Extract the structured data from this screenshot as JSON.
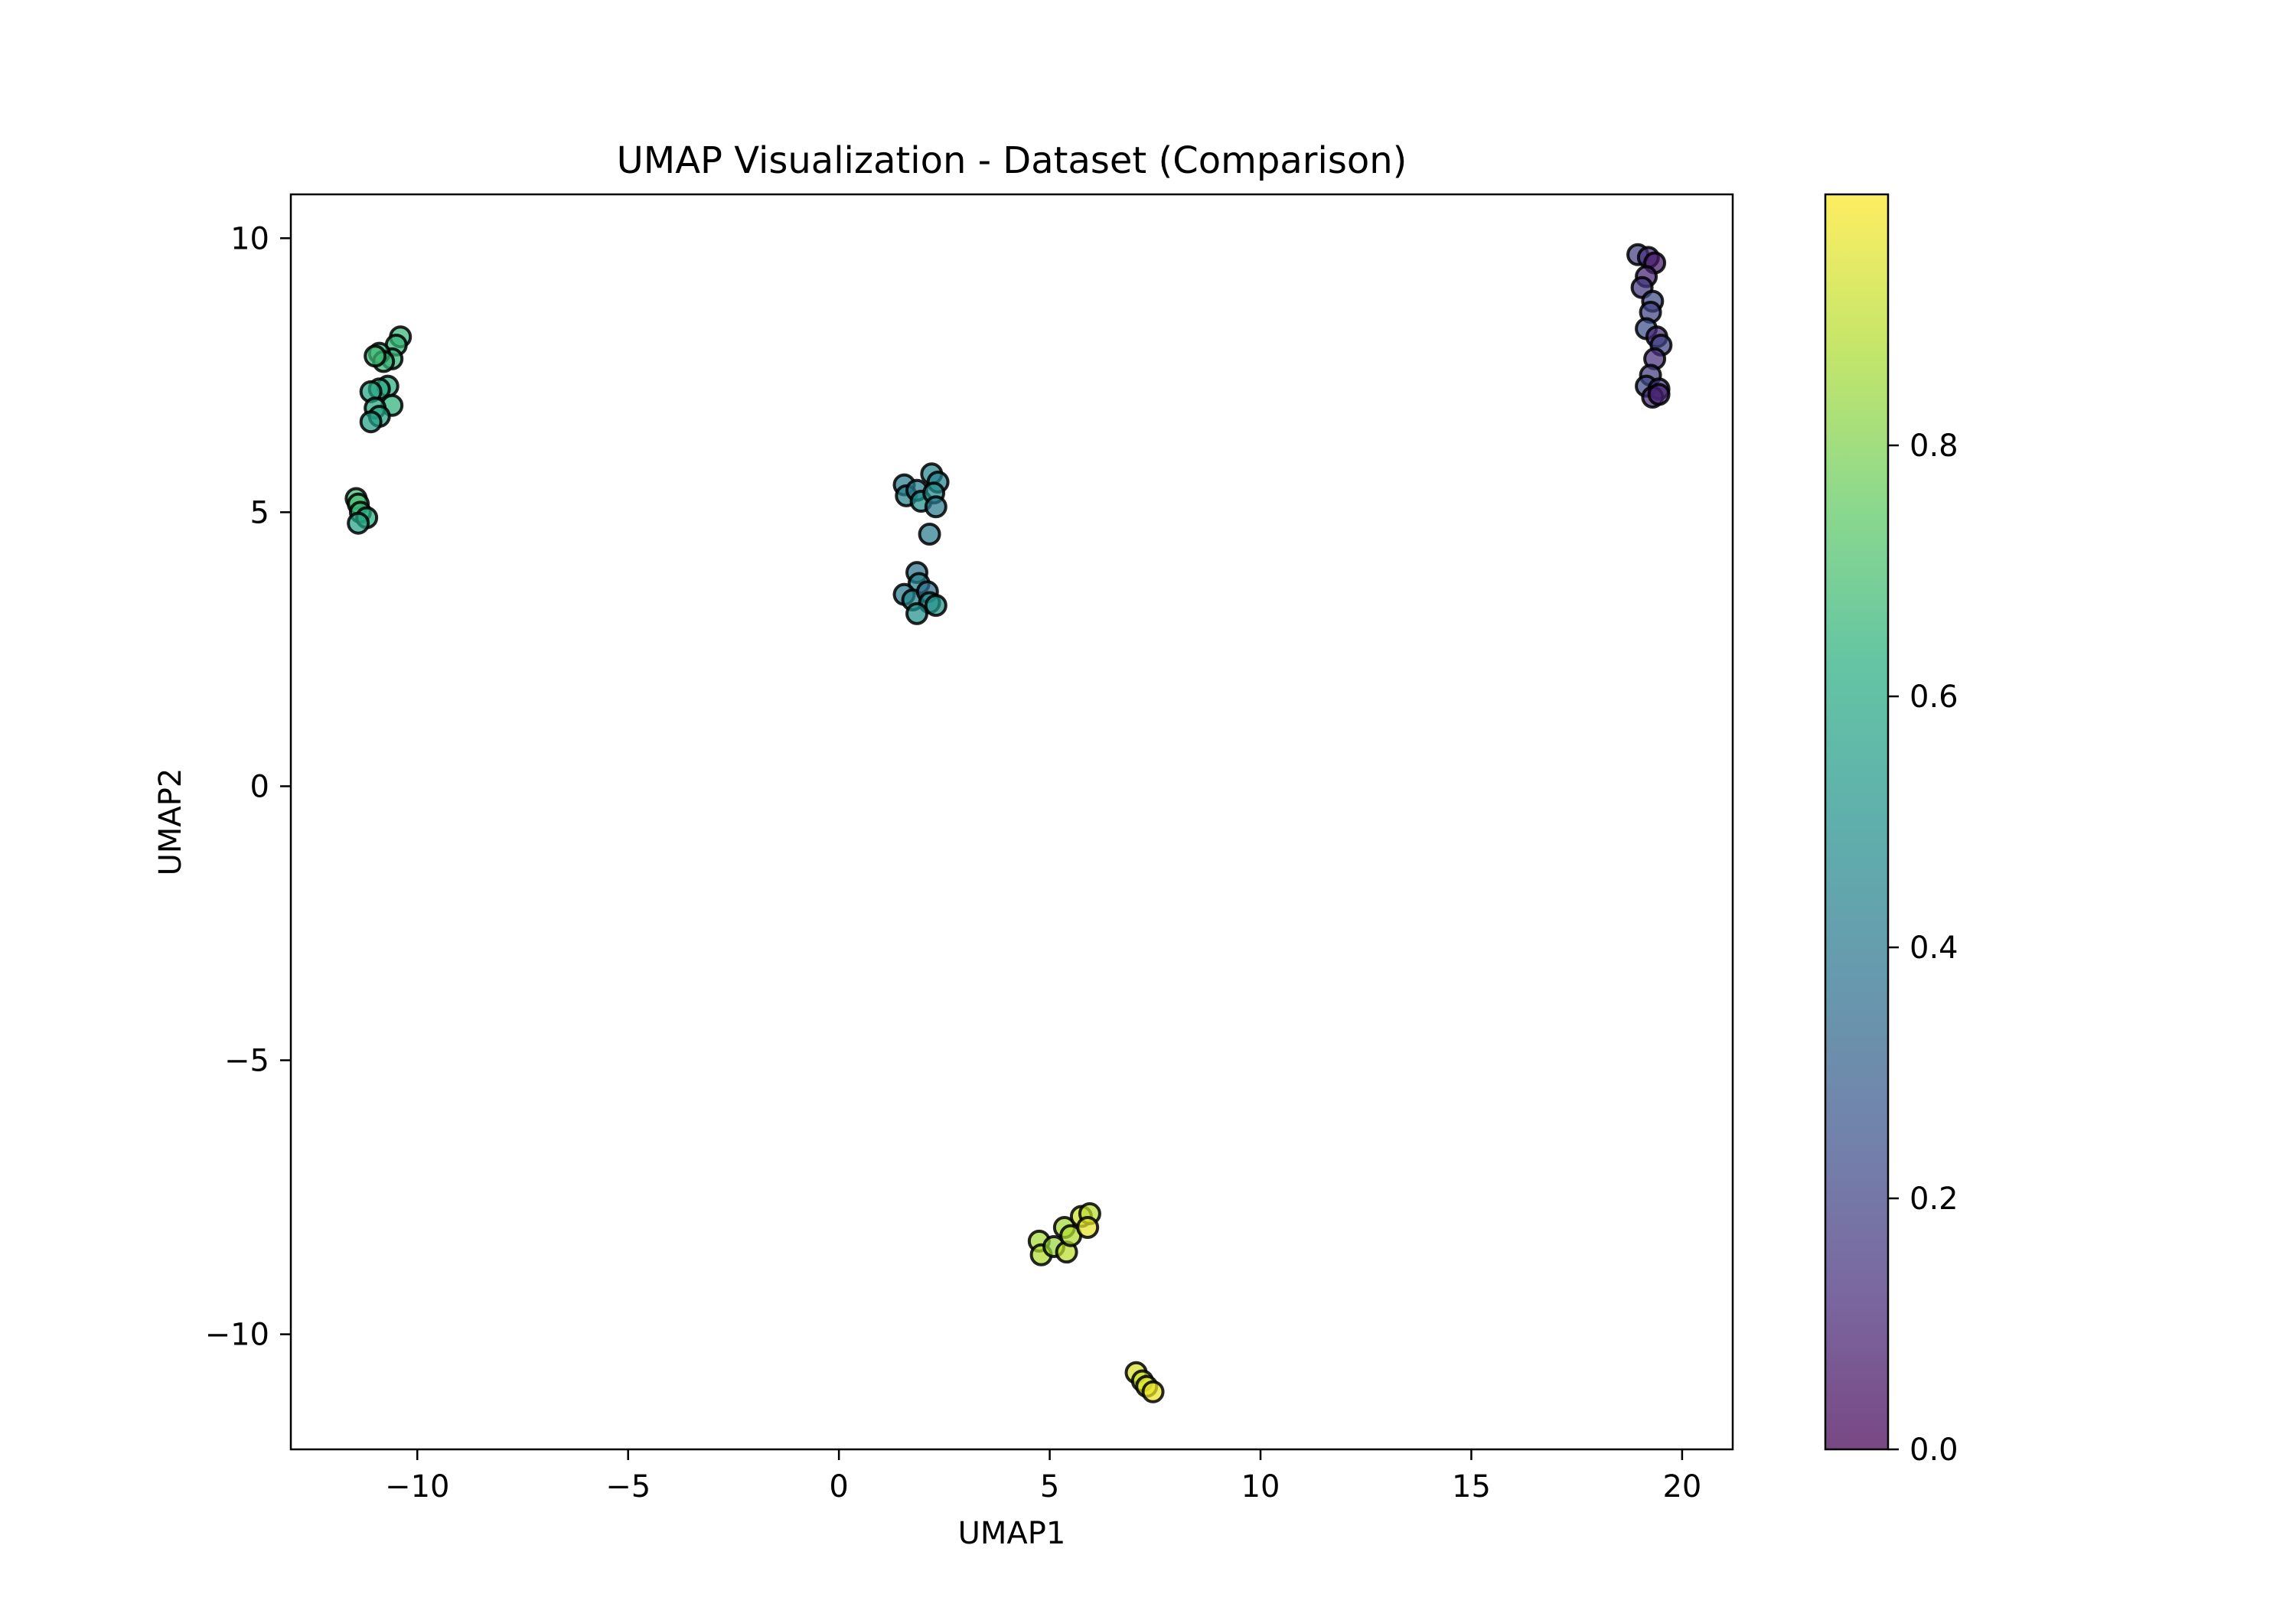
{
  "chart_data": {
    "type": "scatter",
    "title": "UMAP Visualization - Dataset (Comparison)",
    "xlabel": "UMAP1",
    "ylabel": "UMAP2",
    "xlim": [
      -13,
      21.2
    ],
    "ylim": [
      -12.1,
      10.8
    ],
    "xticks": [
      -10,
      -5,
      0,
      5,
      10,
      15,
      20
    ],
    "xtick_labels": [
      "−10",
      "−5",
      "0",
      "5",
      "10",
      "15",
      "20"
    ],
    "yticks": [
      10,
      5,
      0,
      -5,
      -10
    ],
    "ytick_labels": [
      "10",
      "5",
      "0",
      "−5",
      "−10"
    ],
    "grid": false,
    "colormap": "viridis",
    "colorbar": {
      "range": [
        0,
        1
      ],
      "ticks": [
        0.0,
        0.2,
        0.4,
        0.6,
        0.8
      ],
      "tick_labels": [
        "0.0",
        "0.2",
        "0.4",
        "0.6",
        "0.8"
      ]
    },
    "points": [
      {
        "x": -10.4,
        "y": 8.2,
        "c": 0.66
      },
      {
        "x": -10.5,
        "y": 8.05,
        "c": 0.66
      },
      {
        "x": -10.6,
        "y": 7.8,
        "c": 0.66
      },
      {
        "x": -10.9,
        "y": 7.9,
        "c": 0.66
      },
      {
        "x": -10.8,
        "y": 7.75,
        "c": 0.66
      },
      {
        "x": -11.0,
        "y": 7.85,
        "c": 0.68
      },
      {
        "x": -10.7,
        "y": 7.3,
        "c": 0.62
      },
      {
        "x": -10.9,
        "y": 7.25,
        "c": 0.6
      },
      {
        "x": -11.1,
        "y": 7.2,
        "c": 0.58
      },
      {
        "x": -10.6,
        "y": 6.95,
        "c": 0.64
      },
      {
        "x": -11.0,
        "y": 6.9,
        "c": 0.6
      },
      {
        "x": -10.9,
        "y": 6.75,
        "c": 0.58
      },
      {
        "x": -11.1,
        "y": 6.65,
        "c": 0.56
      },
      {
        "x": -11.45,
        "y": 5.25,
        "c": 0.68
      },
      {
        "x": -11.4,
        "y": 5.15,
        "c": 0.7
      },
      {
        "x": -11.35,
        "y": 5.0,
        "c": 0.66
      },
      {
        "x": -11.2,
        "y": 4.9,
        "c": 0.62
      },
      {
        "x": -11.4,
        "y": 4.8,
        "c": 0.58
      },
      {
        "x": 1.55,
        "y": 5.5,
        "c": 0.42
      },
      {
        "x": 1.6,
        "y": 5.3,
        "c": 0.44
      },
      {
        "x": 1.85,
        "y": 5.4,
        "c": 0.42
      },
      {
        "x": 1.95,
        "y": 5.2,
        "c": 0.5
      },
      {
        "x": 2.2,
        "y": 5.7,
        "c": 0.46
      },
      {
        "x": 2.35,
        "y": 5.55,
        "c": 0.44
      },
      {
        "x": 2.25,
        "y": 5.35,
        "c": 0.48
      },
      {
        "x": 2.3,
        "y": 5.1,
        "c": 0.4
      },
      {
        "x": 2.15,
        "y": 4.6,
        "c": 0.42
      },
      {
        "x": 1.85,
        "y": 3.9,
        "c": 0.38
      },
      {
        "x": 1.9,
        "y": 3.7,
        "c": 0.44
      },
      {
        "x": 1.55,
        "y": 3.5,
        "c": 0.4
      },
      {
        "x": 1.75,
        "y": 3.4,
        "c": 0.46
      },
      {
        "x": 2.1,
        "y": 3.55,
        "c": 0.36
      },
      {
        "x": 2.15,
        "y": 3.35,
        "c": 0.48
      },
      {
        "x": 2.3,
        "y": 3.3,
        "c": 0.52
      },
      {
        "x": 1.85,
        "y": 3.15,
        "c": 0.5
      },
      {
        "x": 18.95,
        "y": 9.7,
        "c": 0.18
      },
      {
        "x": 19.2,
        "y": 9.65,
        "c": 0.14
      },
      {
        "x": 19.35,
        "y": 9.55,
        "c": 0.06
      },
      {
        "x": 19.15,
        "y": 9.3,
        "c": 0.1
      },
      {
        "x": 19.05,
        "y": 9.1,
        "c": 0.16
      },
      {
        "x": 19.3,
        "y": 8.85,
        "c": 0.22
      },
      {
        "x": 19.25,
        "y": 8.65,
        "c": 0.2
      },
      {
        "x": 19.15,
        "y": 8.35,
        "c": 0.24
      },
      {
        "x": 19.4,
        "y": 8.2,
        "c": 0.12
      },
      {
        "x": 19.5,
        "y": 8.05,
        "c": 0.2
      },
      {
        "x": 19.35,
        "y": 7.8,
        "c": 0.14
      },
      {
        "x": 19.25,
        "y": 7.5,
        "c": 0.18
      },
      {
        "x": 19.15,
        "y": 7.3,
        "c": 0.22
      },
      {
        "x": 19.45,
        "y": 7.25,
        "c": 0.16
      },
      {
        "x": 19.3,
        "y": 7.1,
        "c": 0.12
      },
      {
        "x": 19.45,
        "y": 7.15,
        "c": 0.1
      },
      {
        "x": 4.75,
        "y": -8.3,
        "c": 0.86
      },
      {
        "x": 4.8,
        "y": -8.55,
        "c": 0.88
      },
      {
        "x": 5.1,
        "y": -8.4,
        "c": 0.84
      },
      {
        "x": 5.35,
        "y": -8.05,
        "c": 0.86
      },
      {
        "x": 5.4,
        "y": -8.5,
        "c": 0.9
      },
      {
        "x": 5.5,
        "y": -8.2,
        "c": 0.88
      },
      {
        "x": 5.75,
        "y": -7.85,
        "c": 0.92
      },
      {
        "x": 5.95,
        "y": -7.8,
        "c": 0.9
      },
      {
        "x": 5.9,
        "y": -8.05,
        "c": 0.96
      },
      {
        "x": 7.05,
        "y": -10.7,
        "c": 0.94
      },
      {
        "x": 7.2,
        "y": -10.85,
        "c": 0.92
      },
      {
        "x": 7.3,
        "y": -10.95,
        "c": 0.95
      },
      {
        "x": 7.45,
        "y": -11.05,
        "c": 0.97
      }
    ]
  }
}
